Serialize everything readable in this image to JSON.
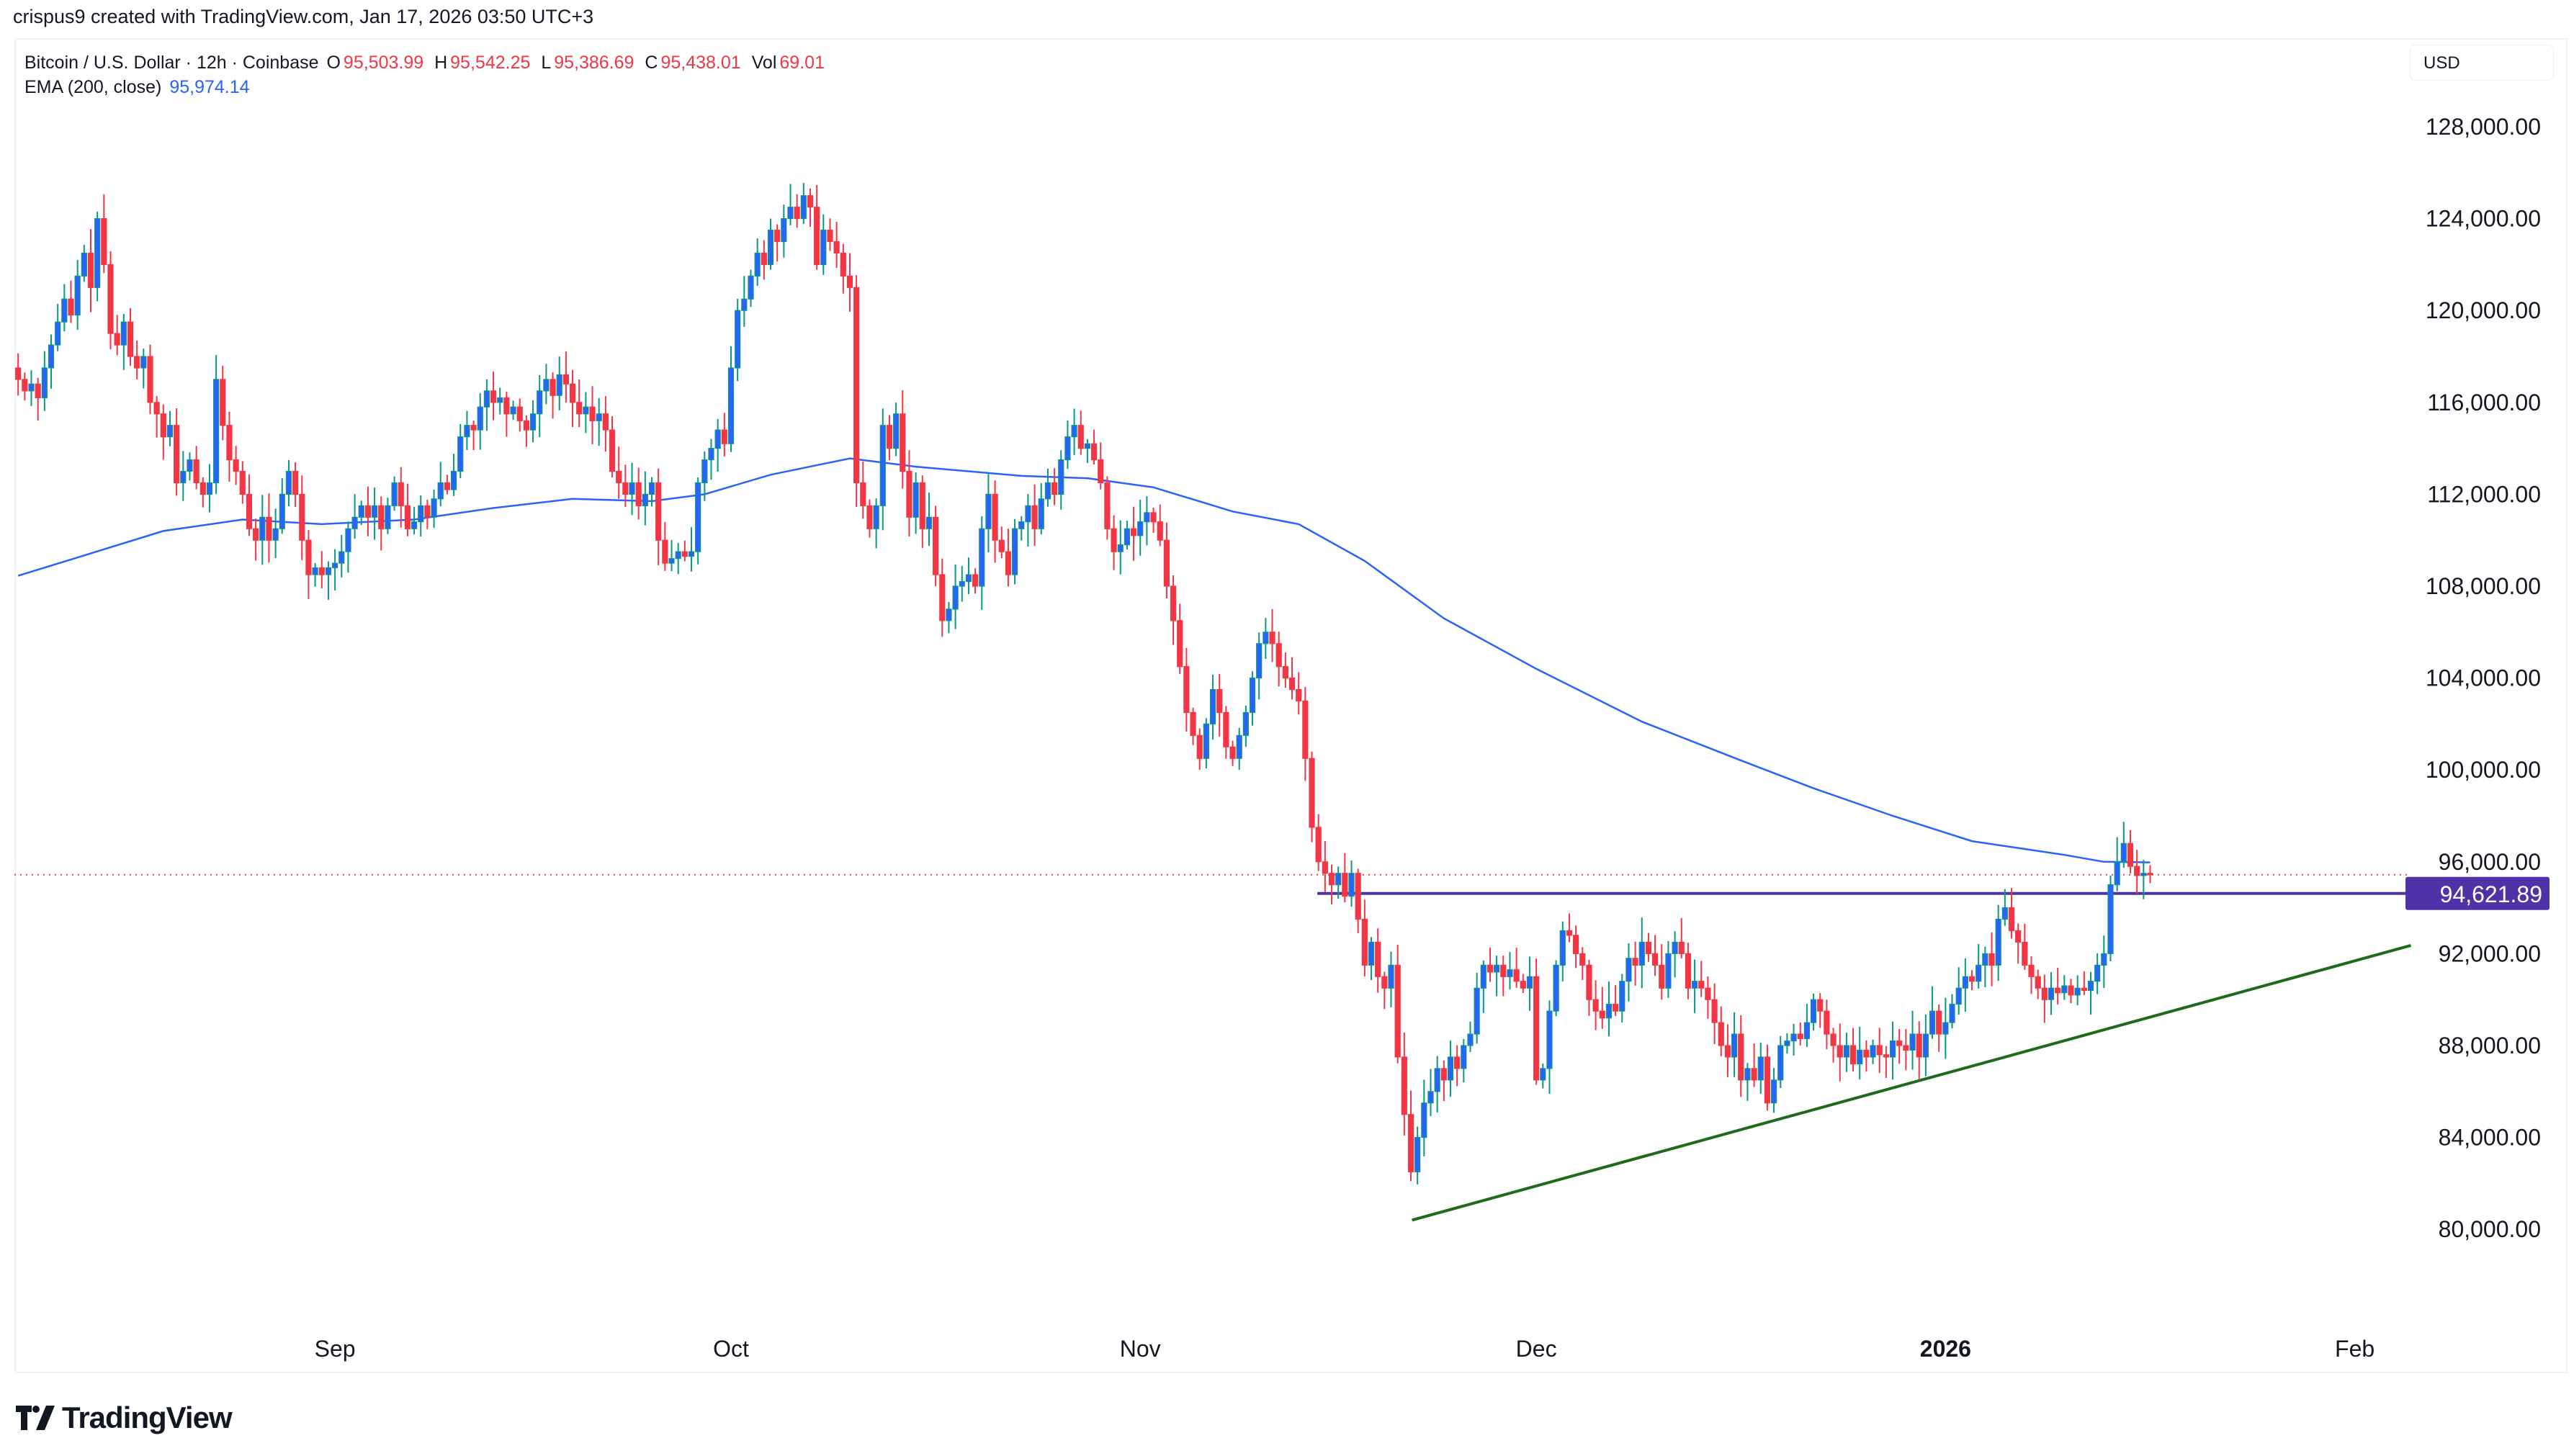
{
  "credit": "crispus9 created with TradingView.com, Jan 17, 2026 03:50 UTC+3",
  "legend": {
    "symbol": "Bitcoin / U.S. Dollar · 12h · Coinbase",
    "o_label": "O",
    "o": "95,503.99",
    "h_label": "H",
    "h": "95,542.25",
    "l_label": "L",
    "l": "95,386.69",
    "c_label": "C",
    "c": "95,438.01",
    "vol_label": "Vol",
    "vol": "69.01",
    "ema_label": "EMA (200, close)",
    "ema": "95,974.14"
  },
  "currency_button": "USD",
  "logo": {
    "text": "TradingView",
    "icon": "tradingview-logo-icon"
  },
  "colors": {
    "up_body": "#2962ff",
    "up_wick": "#089981",
    "down": "#f23645",
    "ema": "#2962ff",
    "level_line": "#5032a8",
    "trendline": "#1e6b1e"
  },
  "chart_data": {
    "type": "candlestick",
    "title": "",
    "interval": "12h",
    "ylim": [
      76000,
      131500
    ],
    "y_ticks": [
      80000,
      84000,
      88000,
      92000,
      96000,
      100000,
      104000,
      108000,
      112000,
      116000,
      120000,
      124000,
      128000
    ],
    "y_tick_labels": [
      "80,000.00",
      "84,000.00",
      "88,000.00",
      "92,000.00",
      "96,000.00",
      "100,000.00",
      "104,000.00",
      "108,000.00",
      "112,000.00",
      "116,000.00",
      "120,000.00",
      "124,000.00",
      "128,000.00"
    ],
    "x_range": [
      "2025-08-07",
      "2026-02-13"
    ],
    "x_ticks": [
      {
        "label": "Sep",
        "date": "2025-09-01"
      },
      {
        "label": "Oct",
        "date": "2025-10-01"
      },
      {
        "label": "Nov",
        "date": "2025-11-01"
      },
      {
        "label": "Dec",
        "date": "2025-12-01"
      },
      {
        "label": "2026",
        "date": "2026-01-01",
        "bold": true
      },
      {
        "label": "Feb",
        "date": "2026-02-01"
      }
    ],
    "first_candle": "2025-08-08T00:00",
    "closes": [
      117000,
      116500,
      116800,
      116200,
      117500,
      118500,
      119500,
      120500,
      119800,
      121500,
      122500,
      121000,
      124000,
      122000,
      119000,
      118500,
      119500,
      118000,
      117500,
      118000,
      116000,
      115500,
      114500,
      115000,
      112500,
      113000,
      113500,
      112500,
      112000,
      112500,
      117000,
      115000,
      113500,
      113000,
      112000,
      110500,
      110000,
      111000,
      110000,
      110500,
      112000,
      113000,
      112000,
      110000,
      108500,
      108800,
      108500,
      108800,
      109000,
      109500,
      110500,
      111000,
      111500,
      111000,
      111500,
      110500,
      111500,
      112500,
      111500,
      110500,
      110800,
      111500,
      111000,
      111800,
      112500,
      112200,
      113000,
      114500,
      115000,
      114800,
      115800,
      116500,
      116000,
      116200,
      115500,
      115800,
      115200,
      114800,
      115500,
      116500,
      117000,
      116300,
      117200,
      116800,
      116000,
      115500,
      115800,
      115200,
      115500,
      114800,
      113000,
      112500,
      112000,
      112500,
      111500,
      112000,
      112500,
      110000,
      109000,
      109200,
      109500,
      109300,
      109500,
      112500,
      113500,
      114000,
      114800,
      114200,
      117500,
      120000,
      120500,
      121500,
      122500,
      122000,
      123500,
      123000,
      124000,
      124500,
      124000,
      125000,
      124500,
      122000,
      123500,
      123000,
      122500,
      121500,
      121000,
      112500,
      111500,
      110500,
      111500,
      115000,
      114000,
      115500,
      113000,
      111000,
      112500,
      110500,
      111000,
      108500,
      106500,
      107000,
      108000,
      108200,
      108500,
      108000,
      110500,
      112000,
      110000,
      109500,
      108500,
      110500,
      110800,
      111500,
      110500,
      111800,
      112500,
      112000,
      113500,
      114500,
      115000,
      114000,
      114200,
      113500,
      112500,
      110500,
      109500,
      109800,
      110500,
      110200,
      110800,
      111200,
      110800,
      110000,
      108000,
      106500,
      104500,
      102500,
      101500,
      100500,
      102000,
      103500,
      102500,
      101000,
      100500,
      101500,
      102500,
      104000,
      105500,
      106000,
      105500,
      104500,
      104000,
      103500,
      103000,
      100500,
      97500,
      96000,
      95500,
      95000,
      95500,
      94500,
      95500,
      93500,
      91500,
      92500,
      91000,
      90500,
      91500,
      87500,
      85000,
      82500,
      84000,
      85500,
      86000,
      87000,
      86500,
      87500,
      87000,
      88000,
      88500,
      90500,
      91500,
      91200,
      91500,
      91000,
      91300,
      90800,
      90500,
      91000,
      86500,
      87000,
      89500,
      91500,
      93000,
      92800,
      92000,
      91500,
      90000,
      89500,
      89200,
      89800,
      89500,
      90800,
      91800,
      91500,
      92500,
      92000,
      91500,
      90500,
      92000,
      92500,
      92000,
      90500,
      90800,
      90500,
      90000,
      89000,
      88000,
      87500,
      88500,
      86500,
      87000,
      86500,
      87500,
      85500,
      86500,
      88000,
      88200,
      88500,
      88300,
      89000,
      90000,
      89500,
      88500,
      88000,
      87500,
      88000,
      87200,
      87800,
      87500,
      88000,
      87600,
      87500,
      88200,
      88000,
      87800,
      88500,
      87500,
      88500,
      89500,
      88500,
      89000,
      89800,
      90500,
      91000,
      90800,
      91500,
      92000,
      91500,
      93500,
      94000,
      93000,
      92500,
      91500,
      91000,
      90500,
      90000,
      90500,
      90300,
      90600,
      90200,
      90500,
      90400,
      90800,
      91500,
      92000,
      95000,
      96000,
      96800,
      95800,
      95400,
      95500,
      95438.01
    ],
    "ema_200": [
      [
        "2025-08-08",
        108450
      ],
      [
        "2025-08-19",
        110400
      ],
      [
        "2025-08-25",
        110900
      ],
      [
        "2025-08-31",
        110700
      ],
      [
        "2025-09-07",
        110900
      ],
      [
        "2025-09-13",
        111400
      ],
      [
        "2025-09-19",
        111800
      ],
      [
        "2025-09-25",
        111700
      ],
      [
        "2025-09-29",
        112000
      ],
      [
        "2025-10-04",
        112850
      ],
      [
        "2025-10-10",
        113560
      ],
      [
        "2025-10-15",
        113200
      ],
      [
        "2025-10-23",
        112800
      ],
      [
        "2025-10-28",
        112700
      ],
      [
        "2025-11-02",
        112300
      ],
      [
        "2025-11-08",
        111250
      ],
      [
        "2025-11-13",
        110700
      ],
      [
        "2025-11-18",
        109100
      ],
      [
        "2025-11-24",
        106600
      ],
      [
        "2025-12-01",
        104400
      ],
      [
        "2025-12-09",
        102100
      ],
      [
        "2025-12-17",
        100300
      ],
      [
        "2025-12-22",
        99200
      ],
      [
        "2025-12-28",
        98000
      ],
      [
        "2026-01-03",
        96900
      ],
      [
        "2026-01-10",
        96300
      ],
      [
        "2026-01-13",
        96000
      ],
      [
        "2026-01-16T12:00",
        95974.14
      ]
    ],
    "last_price": 95438.01,
    "horizontal_level": {
      "value": 94621.89,
      "label": "94,621.89",
      "from": "2025-11-14T10:00"
    },
    "trendline": {
      "from": [
        "2025-11-21T14:00",
        80400
      ],
      "to": [
        "2026-02-05T06:00",
        92360
      ]
    }
  }
}
